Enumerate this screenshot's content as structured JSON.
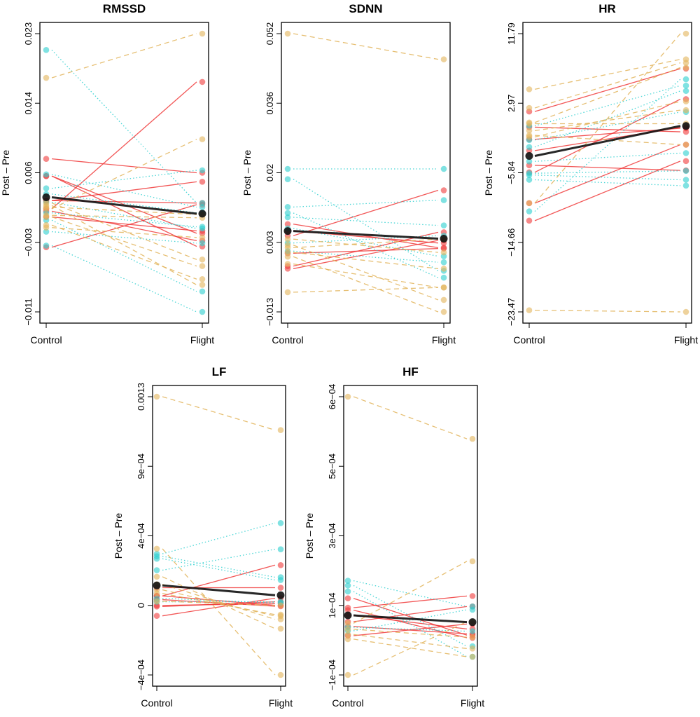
{
  "colors": {
    "group_solid": "#f03a3a",
    "group_dotted": "#2bcfcf",
    "group_dashed": "#e2b45a",
    "mean": "#111111"
  },
  "chart_data": [
    {
      "type": "line",
      "title": "RMSSD",
      "ylabel": "Post – Pre",
      "categories": [
        "Control",
        "Flight"
      ],
      "ylim": [
        -0.011,
        0.023
      ],
      "ytick_labels": [
        "−0.011",
        "−0.003",
        "0.006",
        "0.014",
        "0.023"
      ],
      "series": [
        {
          "style": "solid",
          "color": "#f03a3a",
          "pairs": [
            [
              0.0016,
              0.0171
            ],
            [
              0.0077,
              0.006
            ],
            [
              0.0056,
              -0.0014
            ],
            [
              0.0056,
              -0.003
            ],
            [
              0.0026,
              0.0049
            ],
            [
              0.0026,
              0.0023
            ],
            [
              0.0006,
              -0.0011
            ],
            [
              -0.0031,
              0.0021
            ],
            [
              0.0013,
              -0.0023
            ]
          ]
        },
        {
          "style": "dotted",
          "color": "#2bcfcf",
          "pairs": [
            [
              0.021,
              0.0023
            ],
            [
              -0.0029,
              -0.011
            ],
            [
              0.0041,
              0.0063
            ],
            [
              0.0058,
              0.0018
            ],
            [
              0.0034,
              0.0011
            ],
            [
              0.0024,
              -0.0008
            ],
            [
              0.0011,
              -0.0006
            ],
            [
              -0.0012,
              -0.0026
            ],
            [
              0.0002,
              -0.0085
            ]
          ]
        },
        {
          "style": "dashed",
          "color": "#e2b45a",
          "pairs": [
            [
              0.0176,
              0.023
            ],
            [
              0.002,
              -0.0077
            ],
            [
              0.0023,
              -0.0046
            ],
            [
              0.0006,
              -0.0054
            ],
            [
              -0.0004,
              -0.007
            ],
            [
              0.0008,
              0.0005
            ],
            [
              0.0016,
              0.0101
            ],
            [
              -0.0007,
              -0.0019
            ],
            [
              0.0018,
              0.0009
            ]
          ]
        }
      ],
      "mean": [
        0.003,
        0.001
      ]
    },
    {
      "type": "line",
      "title": "SDNN",
      "ylabel": "Post – Pre",
      "categories": [
        "Control",
        "Flight"
      ],
      "ylim": [
        -0.013,
        0.052
      ],
      "ytick_labels": [
        "−0.013",
        "0.003",
        "0.02",
        "0.036",
        "0.052"
      ],
      "series": [
        {
          "style": "solid",
          "color": "#f03a3a",
          "pairs": [
            [
              0.0048,
              0.0154
            ],
            [
              0.0075,
              0.002
            ],
            [
              -0.0023,
              0.0056
            ],
            [
              -0.0029,
              0.0037
            ],
            [
              0.0007,
              0.0018
            ],
            [
              0.0059,
              0.0031
            ]
          ]
        },
        {
          "style": "dotted",
          "color": "#2bcfcf",
          "pairs": [
            [
              0.0204,
              0.0204
            ],
            [
              0.018,
              -0.0034
            ],
            [
              0.0115,
              0.0131
            ],
            [
              0.0101,
              -0.005
            ],
            [
              0.0091,
              0.0072
            ],
            [
              0.0031,
              0.0048
            ],
            [
              0.0065,
              0.0
            ],
            [
              0.0012,
              -0.0014
            ]
          ]
        },
        {
          "style": "dashed",
          "color": "#e2b45a",
          "pairs": [
            [
              0.052,
              0.046
            ],
            [
              -0.0084,
              -0.0073
            ],
            [
              0.0026,
              -0.0102
            ],
            [
              -0.0001,
              -0.013
            ],
            [
              -0.0018,
              -0.0073
            ],
            [
              0.0009,
              -0.0029
            ],
            [
              0.004,
              0.0009
            ],
            [
              0.002,
              0.004
            ]
          ]
        }
      ],
      "mean": [
        0.0059,
        0.0041
      ]
    },
    {
      "type": "line",
      "title": "HR",
      "ylabel": "Post – Pre",
      "categories": [
        "Control",
        "Flight"
      ],
      "ylim": [
        -23.47,
        11.79
      ],
      "ytick_labels": [
        "−23.47",
        "−14.66",
        "−5.84",
        "2.97",
        "11.79"
      ],
      "series": [
        {
          "style": "solid",
          "color": "#f03a3a",
          "pairs": [
            [
              1.92,
              7.35
            ],
            [
              -0.06,
              -0.65
            ],
            [
              -1.6,
              -0.2
            ],
            [
              -3.03,
              -0.09
            ],
            [
              -9.69,
              -2.28
            ],
            [
              -11.91,
              -4.36
            ],
            [
              -4.89,
              -5.54
            ],
            [
              -5.78,
              3.49
            ]
          ]
        },
        {
          "style": "dotted",
          "color": "#2bcfcf",
          "pairs": [
            [
              -10.73,
              6.01
            ],
            [
              -6.73,
              -7.47
            ],
            [
              -6.13,
              -6.73
            ],
            [
              -1.69,
              1.86
            ],
            [
              -2.58,
              4.53
            ],
            [
              -4.4,
              -3.35
            ],
            [
              0.1,
              5.2
            ],
            [
              -5.9,
              -5.6
            ]
          ]
        },
        {
          "style": "dashed",
          "color": "#e2b45a",
          "pairs": [
            [
              4.74,
              8.53
            ],
            [
              2.37,
              8.09
            ],
            [
              0.53,
              7.49
            ],
            [
              -9.69,
              11.79
            ],
            [
              -23.26,
              -23.47
            ],
            [
              -1.1,
              -2.28
            ],
            [
              0.38,
              0.38
            ],
            [
              -1.3,
              3.2
            ],
            [
              -0.5,
              2.1
            ]
          ]
        }
      ],
      "mean": [
        -3.71,
        0.09
      ]
    },
    {
      "type": "line",
      "title": "LF",
      "ylabel": "Post – Pre",
      "categories": [
        "Control",
        "Flight"
      ],
      "ylim": [
        -0.0004,
        0.0013
      ],
      "ytick_labels": [
        "−4e−04",
        "0",
        "4e−04",
        "9e−04",
        "0.0013"
      ],
      "series": [
        {
          "style": "solid",
          "color": "#f03a3a",
          "pairs": [
            [
              8.3e-05,
              0.000271
            ],
            [
              -3.9e-05,
              6.9e-05
            ],
            [
              0.000133,
              0.000133
            ],
            [
              2.5e-05,
              3.5e-05
            ],
            [
              8.3e-05,
              2.5e-05
            ],
            [
              1.8e-05,
              4.7e-05
            ],
            [
              6e-05,
              2e-05
            ]
          ]
        },
        {
          "style": "dotted",
          "color": "#2bcfcf",
          "pairs": [
            [
              0.00034,
              0.000528
            ],
            [
              0.00024,
              0.000368
            ],
            [
              0.000325,
              0.000197
            ],
            [
              4.7e-05,
              4.7e-05
            ],
            [
              6.8e-05,
              4e-05
            ],
            [
              0.00031,
              0.00018
            ]
          ]
        },
        {
          "style": "dashed",
          "color": "#e2b45a",
          "pairs": [
            [
              0.0013,
              0.001096
            ],
            [
              0.000371,
              -0.0004
            ],
            [
              0.0002,
              -0.000117
            ],
            [
              0.000154,
              -6e-05
            ],
            [
              9.77e-05,
              -3.14e-05
            ],
            [
              5e-05,
              2.5e-05
            ],
            [
              0.00012,
              -4e-05
            ]
          ]
        }
      ],
      "mean": [
        0.000147,
        8.7e-05
      ]
    },
    {
      "type": "line",
      "title": "HF",
      "ylabel": "Post – Pre",
      "categories": [
        "Control",
        "Flight"
      ],
      "ylim": [
        -0.0001,
        0.0006
      ],
      "ytick_labels": [
        "−1e−04",
        "1e−04",
        "3e−04",
        "5e−04",
        "6e−04"
      ],
      "series": [
        {
          "style": "solid",
          "color": "#f03a3a",
          "pairs": [
            [
              9.27e-05,
              0.0
            ],
            [
              6.92e-05,
              9.86e-05
            ],
            [
              3.4e-05,
              7.22e-05
            ],
            [
              2.2e-05,
              3.4e-06
            ],
            [
              -1.2e-06,
              2.8e-05
            ],
            [
              6.3e-05,
              -6.6e-06
            ],
            [
              5e-05,
              1.57e-05
            ]
          ]
        },
        {
          "style": "dotted",
          "color": "#2bcfcf",
          "pairs": [
            [
              0.000137,
              7.22e-05
            ],
            [
              0.000125,
              -2.78e-05
            ],
            [
              0.00011,
              -5.42e-05
            ],
            [
              1.1e-05,
              6.4e-05
            ],
            [
              2e-05,
              1e-05
            ]
          ]
        },
        {
          "style": "dashed",
          "color": "#e2b45a",
          "pairs": [
            [
              0.0006,
              0.000494
            ],
            [
              -0.0001,
              3.39e-05
            ],
            [
              -9.9e-06,
              -5.42e-05
            ],
            [
              1.8e-06,
              -3.36e-05
            ],
            [
              3e-05,
              0.000186
            ],
            [
              1.5e-05,
              -5e-06
            ]
          ]
        }
      ],
      "mean": [
        4.98e-05,
        3.28e-05
      ]
    }
  ]
}
